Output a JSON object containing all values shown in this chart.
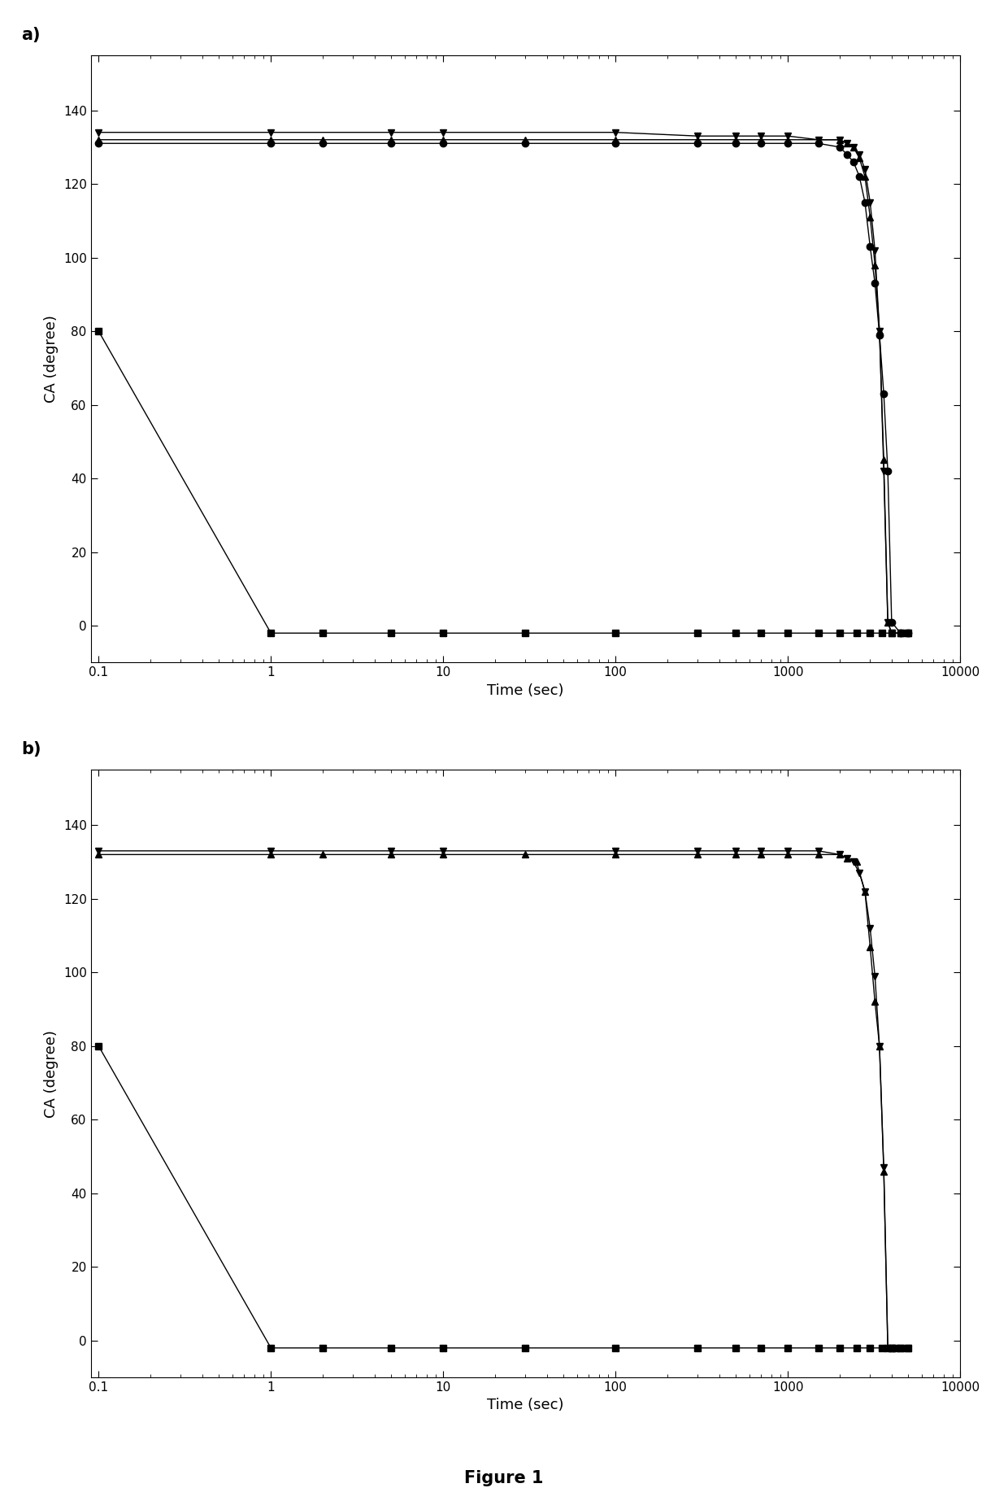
{
  "panel_a": {
    "series_square": {
      "x": [
        0.1,
        1,
        2,
        5,
        10,
        30,
        100,
        300,
        500,
        700,
        1000,
        1500,
        2000,
        2500,
        3000,
        3500,
        4000,
        4500,
        5000
      ],
      "y": [
        80,
        -2,
        -2,
        -2,
        -2,
        -2,
        -2,
        -2,
        -2,
        -2,
        -2,
        -2,
        -2,
        -2,
        -2,
        -2,
        -2,
        -2,
        -2
      ],
      "marker": "s",
      "color": "#000000",
      "ms": 6
    },
    "series_circle": {
      "x": [
        0.1,
        1,
        2,
        5,
        10,
        30,
        100,
        300,
        500,
        700,
        1000,
        1500,
        2000,
        2200,
        2400,
        2600,
        2800,
        3000,
        3200,
        3400,
        3600,
        3800,
        4000,
        4500,
        5000
      ],
      "y": [
        131,
        131,
        131,
        131,
        131,
        131,
        131,
        131,
        131,
        131,
        131,
        131,
        130,
        128,
        126,
        122,
        115,
        103,
        93,
        79,
        63,
        42,
        1,
        -2,
        -2
      ],
      "marker": "o",
      "color": "#000000",
      "ms": 6
    },
    "series_tri_up": {
      "x": [
        0.1,
        1,
        2,
        5,
        10,
        30,
        100,
        300,
        500,
        700,
        1000,
        1500,
        2000,
        2200,
        2400,
        2600,
        2800,
        3000,
        3200,
        3400,
        3600,
        3800,
        4000,
        4500,
        5000
      ],
      "y": [
        132,
        132,
        132,
        132,
        132,
        132,
        132,
        132,
        132,
        132,
        132,
        132,
        132,
        131,
        130,
        127,
        122,
        111,
        98,
        80,
        45,
        1,
        -2,
        -2,
        -2
      ],
      "marker": "^",
      "color": "#000000",
      "ms": 6
    },
    "series_tri_down": {
      "x": [
        0.1,
        1,
        5,
        10,
        100,
        300,
        500,
        700,
        1000,
        1500,
        2000,
        2200,
        2400,
        2600,
        2800,
        3000,
        3200,
        3400,
        3600,
        3800,
        4000,
        4500,
        5000
      ],
      "y": [
        134,
        134,
        134,
        134,
        134,
        133,
        133,
        133,
        133,
        132,
        132,
        131,
        130,
        128,
        124,
        115,
        102,
        80,
        42,
        1,
        -2,
        -2,
        -2
      ],
      "marker": "v",
      "color": "#000000",
      "ms": 6
    }
  },
  "panel_b": {
    "series_square": {
      "x": [
        0.1,
        1,
        2,
        5,
        10,
        30,
        100,
        300,
        500,
        700,
        1000,
        1500,
        2000,
        2500,
        3000,
        3500,
        4000,
        4500,
        5000
      ],
      "y": [
        80,
        -2,
        -2,
        -2,
        -2,
        -2,
        -2,
        -2,
        -2,
        -2,
        -2,
        -2,
        -2,
        -2,
        -2,
        -2,
        -2,
        -2,
        -2
      ],
      "marker": "s",
      "color": "#000000",
      "ms": 6
    },
    "series_tri_up": {
      "x": [
        0.1,
        1,
        2,
        5,
        10,
        30,
        100,
        300,
        500,
        700,
        1000,
        1500,
        2000,
        2200,
        2500,
        2800,
        3000,
        3200,
        3400,
        3600,
        3800,
        4000,
        4200,
        4500,
        5000
      ],
      "y": [
        132,
        132,
        132,
        132,
        132,
        132,
        132,
        132,
        132,
        132,
        132,
        132,
        132,
        131,
        130,
        122,
        107,
        92,
        80,
        46,
        -2,
        -2,
        -2,
        -2,
        -2
      ],
      "marker": "^",
      "color": "#000000",
      "ms": 6
    },
    "series_tri_down": {
      "x": [
        0.1,
        1,
        5,
        10,
        100,
        300,
        500,
        700,
        1000,
        1500,
        2000,
        2200,
        2400,
        2600,
        2800,
        3000,
        3200,
        3400,
        3600,
        3800,
        4000,
        4200,
        4500,
        5000
      ],
      "y": [
        133,
        133,
        133,
        133,
        133,
        133,
        133,
        133,
        133,
        133,
        132,
        131,
        130,
        127,
        122,
        112,
        99,
        80,
        47,
        -2,
        -2,
        -2,
        -2,
        -2
      ],
      "marker": "v",
      "color": "#000000",
      "ms": 6
    }
  },
  "xlim": [
    0.09,
    10000
  ],
  "ylim": [
    -10,
    155
  ],
  "yticks": [
    0,
    20,
    40,
    60,
    80,
    100,
    120,
    140
  ],
  "xtick_labels": [
    "0.1",
    "1",
    "10",
    "100",
    "1000",
    "10000"
  ],
  "xtick_values": [
    0.1,
    1,
    10,
    100,
    1000,
    10000
  ],
  "xlabel": "Time (sec)",
  "ylabel": "CA (degree)",
  "figure_label": "Figure 1",
  "label_a": "a)",
  "label_b": "b)",
  "bg_color": "#ffffff",
  "line_color": "#000000",
  "linewidth": 1.0
}
